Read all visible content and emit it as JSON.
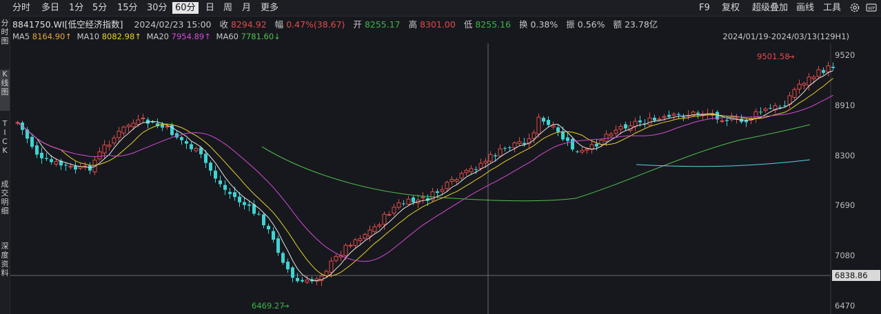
{
  "toolbar": {
    "periods": [
      "分时",
      "多日",
      "1分",
      "5分",
      "15分",
      "30分",
      "60分",
      "日",
      "周",
      "月",
      "更多"
    ],
    "active_period": "60分",
    "right": {
      "f9": "F9",
      "fuquan": "复权",
      "overlay": "超级叠加",
      "draw": "画线",
      "tools": "工具",
      "wp": "WP"
    }
  },
  "side_tabs": [
    "分时图",
    "K线图",
    "TICK",
    "成交明细",
    "深度资料"
  ],
  "info": {
    "code": "8841750.WI[低空经济指数]",
    "datetime": "2024/02/23 15:00",
    "close_label": "收",
    "close": "8294.92",
    "change_label": "幅",
    "change": "0.47%(38.67)",
    "open_label": "开",
    "open": "8255.17",
    "high_label": "高",
    "high": "8301.00",
    "low_label": "低",
    "low": "8255.16",
    "turnover_label": "换",
    "turnover": "0.38%",
    "amplitude_label": "振",
    "amplitude": "0.56%",
    "amount_label": "额",
    "amount": "23.78亿"
  },
  "ma": {
    "ma5_label": "MA5",
    "ma5": "8164.90↑",
    "ma10_label": "MA10",
    "ma10": "8082.98↑",
    "ma20_label": "MA20",
    "ma20": "7954.89↑",
    "ma60_label": "MA60",
    "ma60": "7781.60↓"
  },
  "range": "2024/01/19-2024/03/13(129H1)",
  "colors": {
    "up": "#e24b4b",
    "down": "#3fd3d3",
    "ma5": "#e6e6e6",
    "ma10": "#e6d22b",
    "ma20": "#d64bd6",
    "ma60": "#4fc24f",
    "ma_cyan": "#56d6e8"
  },
  "chart_data": {
    "type": "candlestick",
    "y_ticks": [
      "9520",
      "8910",
      "8300",
      "7690",
      "7080",
      "6470"
    ],
    "ylim": [
      6370,
      9620
    ],
    "current_price": "6838.86",
    "annotation_high": "9501.58",
    "annotation_low": "6469.27",
    "bars": 129
  }
}
